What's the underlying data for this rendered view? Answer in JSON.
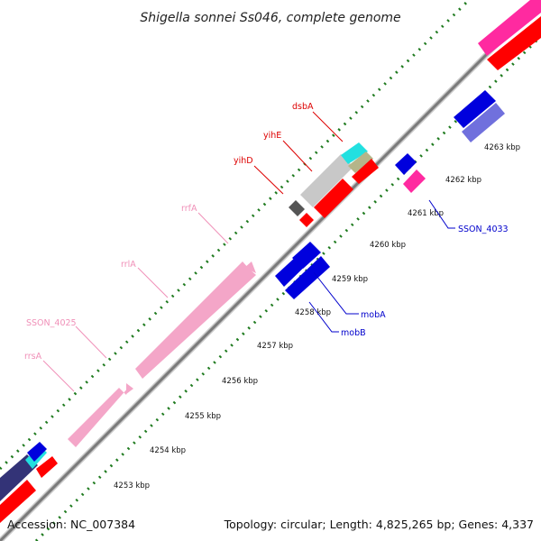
{
  "title": "Shigella sonnei Ss046, complete genome",
  "footer": {
    "accession": "Accession: NC_007384",
    "summary": "Topology: circular; Length: 4,825,265 bp; Genes: 4,337"
  },
  "colors": {
    "backbone": "#8c8c8c",
    "tick_dots": "#1e7a1e",
    "rRNA": "#f4a6c8",
    "cds_forward": "#ff0000",
    "cds_reverse": "#0000dd",
    "misc_light_blue": "#7070dd",
    "pink": "#ff2aa0",
    "cyan": "#22e0e0",
    "khaki": "#b5b58a",
    "grey": "#c8c8c8",
    "dark_grey": "#555555",
    "navy": "#333377"
  },
  "ticks": [
    {
      "label": "4253 kbp"
    },
    {
      "label": "4254 kbp"
    },
    {
      "label": "4255 kbp"
    },
    {
      "label": "4256 kbp"
    },
    {
      "label": "4257 kbp"
    },
    {
      "label": "4258 kbp"
    },
    {
      "label": "4259 kbp"
    },
    {
      "label": "4260 kbp"
    },
    {
      "label": "4261 kbp"
    },
    {
      "label": "4262 kbp"
    },
    {
      "label": "4263 kbp"
    }
  ],
  "gene_labels": [
    {
      "name": "dsbA",
      "color": "#dd0000"
    },
    {
      "name": "yihE",
      "color": "#dd0000"
    },
    {
      "name": "yihD",
      "color": "#dd0000"
    },
    {
      "name": "rrfA",
      "color": "#f090b8"
    },
    {
      "name": "rrlA",
      "color": "#f090b8"
    },
    {
      "name": "SSON_4025",
      "color": "#f090b8"
    },
    {
      "name": "rrsA",
      "color": "#f090b8"
    },
    {
      "name": "SSON_4033",
      "color": "#0000cc"
    },
    {
      "name": "mobA",
      "color": "#0000cc"
    },
    {
      "name": "mobB",
      "color": "#0000cc"
    }
  ]
}
